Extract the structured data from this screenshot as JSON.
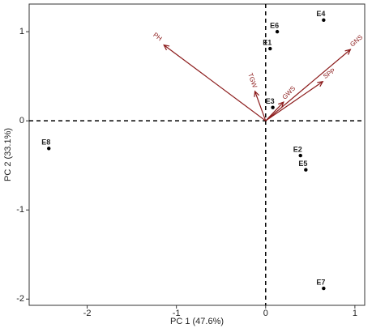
{
  "chart_data": {
    "type": "biplot",
    "xlabel": "PC 1 (47.6%)",
    "ylabel": "PC 2 (33.1%)",
    "xlim": [
      -2.65,
      1.11
    ],
    "ylim": [
      -2.07,
      1.31
    ],
    "xticks": [
      -2,
      -1,
      0,
      1
    ],
    "yticks": [
      -2,
      -1,
      0,
      1
    ],
    "points": {
      "color": "#000000",
      "labels": [
        "E4",
        "E6",
        "E1",
        "E3",
        "E8",
        "E2",
        "E5",
        "E7"
      ],
      "x": [
        0.65,
        0.13,
        0.05,
        0.08,
        -2.43,
        0.39,
        0.45,
        0.65
      ],
      "y": [
        1.13,
        1.0,
        0.81,
        0.15,
        -0.31,
        -0.39,
        -0.55,
        -1.88
      ]
    },
    "vectors": {
      "color": "#8b1a1a",
      "labels": [
        "PH",
        "TGW",
        "GWS",
        "SPP",
        "GNS"
      ],
      "x": [
        -1.14,
        -0.12,
        0.2,
        0.64,
        0.95
      ],
      "y": [
        0.85,
        0.33,
        0.21,
        0.44,
        0.8
      ]
    }
  }
}
